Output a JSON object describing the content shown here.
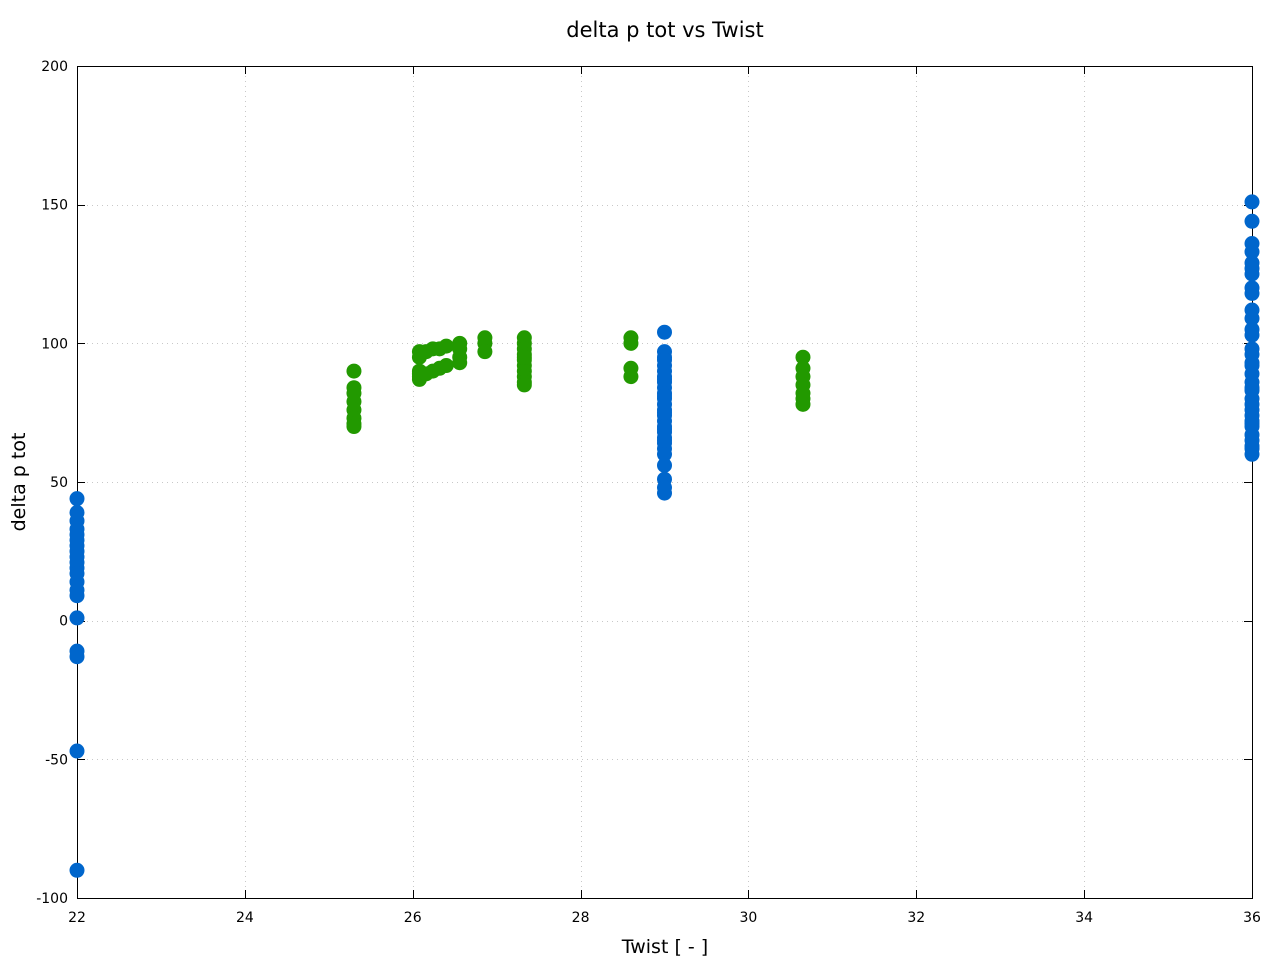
{
  "chart_data": {
    "type": "scatter",
    "title": "delta p tot vs Twist",
    "xlabel": "Twist [ - ]",
    "ylabel": "delta p tot",
    "xlim": [
      22,
      36
    ],
    "ylim": [
      -100,
      200
    ],
    "xticks": [
      22,
      24,
      26,
      28,
      30,
      32,
      34,
      36
    ],
    "yticks": [
      -100,
      -50,
      0,
      50,
      100,
      150,
      200
    ],
    "grid": true,
    "legend": "none",
    "series": [
      {
        "color": "#0066cc",
        "x": [
          22,
          22,
          22,
          22,
          22,
          22,
          22,
          22,
          22,
          22,
          22,
          22,
          22,
          22,
          22,
          22,
          22,
          22,
          22,
          22,
          29,
          29,
          29,
          29,
          29,
          29,
          29,
          29,
          29,
          29,
          29,
          29,
          29,
          29,
          29,
          29,
          29,
          29,
          29,
          29,
          29,
          29,
          29,
          29,
          29,
          29,
          29,
          29,
          29,
          29,
          36,
          36,
          36,
          36,
          36,
          36,
          36,
          36,
          36,
          36,
          36,
          36,
          36,
          36,
          36,
          36,
          36,
          36,
          36,
          36,
          36,
          36,
          36,
          36,
          36,
          36,
          36,
          36,
          36,
          36,
          36,
          36,
          36
        ],
        "y": [
          44,
          39,
          36,
          33,
          31,
          29,
          27,
          25,
          23,
          21,
          19,
          17,
          14,
          11,
          9,
          1,
          -11,
          -13,
          -47,
          -90,
          104,
          97,
          95,
          92,
          90,
          88,
          86,
          84,
          82,
          80,
          78,
          76,
          74,
          72,
          70,
          68,
          66,
          64,
          62,
          60,
          56,
          51,
          48,
          46,
          94,
          87,
          81,
          75,
          69,
          65,
          151,
          144,
          136,
          133,
          129,
          127,
          125,
          120,
          118,
          112,
          109,
          105,
          103,
          96,
          92,
          89,
          86,
          83,
          80,
          78,
          76,
          74,
          72,
          70,
          67,
          65,
          62,
          60,
          98,
          93,
          84,
          71,
          63
        ]
      },
      {
        "color": "#229900",
        "x": [
          25.3,
          25.3,
          25.3,
          25.3,
          25.3,
          25.3,
          25.3,
          25.3,
          26.08,
          26.08,
          26.08,
          26.08,
          26.08,
          26.08,
          26.16,
          26.16,
          26.24,
          26.24,
          26.32,
          26.32,
          26.4,
          26.4,
          26.56,
          26.56,
          26.56,
          26.56,
          26.86,
          26.86,
          26.86,
          27.33,
          27.33,
          27.33,
          27.33,
          27.33,
          27.33,
          27.33,
          27.33,
          27.33,
          27.33,
          27.33,
          28.6,
          28.6,
          28.6,
          28.6,
          30.65,
          30.65,
          30.65,
          30.65,
          30.65,
          30.65,
          30.65
        ],
        "y": [
          90,
          84,
          82,
          79,
          76,
          73,
          71,
          70,
          97,
          95,
          90,
          88,
          87,
          89,
          97,
          89,
          98,
          90,
          98,
          91,
          99,
          92,
          100,
          98,
          95,
          93,
          102,
          100,
          97,
          102,
          100,
          98,
          96,
          94,
          92,
          90,
          88,
          86,
          85,
          95,
          102,
          100,
          91,
          88,
          95,
          91,
          88,
          85,
          82,
          80,
          78
        ]
      }
    ]
  }
}
